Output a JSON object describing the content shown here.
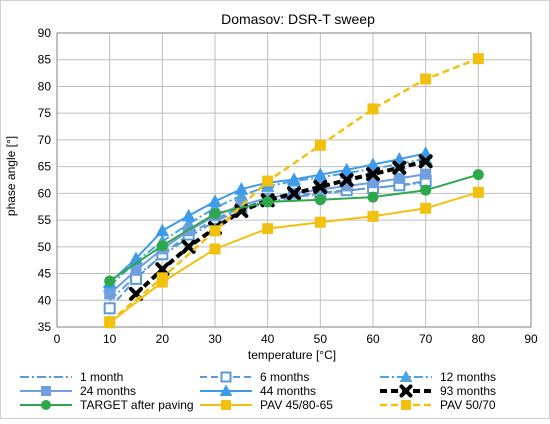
{
  "chart_data": {
    "type": "line",
    "title": "Domasov: DSR-T sweep",
    "xlabel": "temperature [°C]",
    "ylabel": "phase angle    [°]",
    "xlim": [
      0,
      90
    ],
    "ylim": [
      35,
      90
    ],
    "xticks": [
      0,
      10,
      20,
      30,
      40,
      50,
      60,
      70,
      80,
      90
    ],
    "yticks": [
      35,
      40,
      45,
      50,
      55,
      60,
      65,
      70,
      75,
      80,
      85,
      90
    ],
    "grid": true,
    "legend_position": "bottom",
    "series": [
      {
        "name": "1 month",
        "color": "#5b9bd5",
        "line": "dashdot",
        "marker": "none",
        "width": 2,
        "x": [
          10,
          15,
          20,
          25,
          30,
          35,
          40,
          45,
          50,
          55,
          60,
          65,
          70
        ],
        "y": [
          40.0,
          44.5,
          48.3,
          51.8,
          54.8,
          56.9,
          58.3,
          59.3,
          59.9,
          60.5,
          61.0,
          61.5,
          62.0
        ]
      },
      {
        "name": "6 months",
        "color": "#5b9bd5",
        "line": "dash",
        "marker": "square-open",
        "width": 2,
        "x": [
          10,
          15,
          20,
          25,
          30,
          35,
          40,
          45,
          50,
          55,
          60,
          65,
          70
        ],
        "y": [
          38.5,
          44.0,
          48.6,
          52.3,
          55.2,
          57.3,
          58.7,
          59.6,
          60.1,
          60.6,
          61.0,
          61.5,
          62.3
        ]
      },
      {
        "name": "12 months",
        "color": "#4fa3e0",
        "line": "dashdot",
        "marker": "triangle",
        "width": 2,
        "x": [
          10,
          15,
          20,
          25,
          30,
          35,
          40,
          45,
          50,
          55,
          60,
          65,
          70
        ],
        "y": [
          42.6,
          47.3,
          51.0,
          54.3,
          57.3,
          59.6,
          61.3,
          62.3,
          63.0,
          63.8,
          64.6,
          65.5,
          66.5
        ]
      },
      {
        "name": "24 months",
        "color": "#6f9fe0",
        "line": "solid",
        "marker": "square",
        "width": 2,
        "x": [
          10,
          15,
          20,
          25,
          30,
          35,
          40,
          45,
          50,
          55,
          60,
          65,
          70
        ],
        "y": [
          41.2,
          45.6,
          49.6,
          53.0,
          55.8,
          57.8,
          59.1,
          60.0,
          60.7,
          61.4,
          62.0,
          62.8,
          63.6
        ]
      },
      {
        "name": "44 months",
        "color": "#3d9be9",
        "line": "solid",
        "marker": "triangle",
        "width": 2,
        "x": [
          10,
          15,
          20,
          25,
          30,
          35,
          40,
          45,
          50,
          55,
          60,
          65,
          70
        ],
        "y": [
          43.3,
          47.8,
          53.0,
          55.8,
          58.5,
          60.8,
          62.0,
          62.6,
          63.5,
          64.4,
          65.4,
          66.4,
          67.5
        ]
      },
      {
        "name": "93 months",
        "color": "#000000",
        "line": "dash",
        "marker": "x-bold",
        "width": 4,
        "x": [
          15,
          20,
          25,
          30,
          35,
          40,
          45,
          50,
          55,
          60,
          65,
          70
        ],
        "y": [
          41.2,
          45.8,
          50.0,
          53.5,
          56.7,
          58.7,
          60.0,
          61.2,
          62.5,
          63.6,
          64.8,
          66.0
        ]
      },
      {
        "name": "TARGET after paving",
        "color": "#2ea84a",
        "line": "solid",
        "marker": "circle",
        "width": 2,
        "x": [
          10,
          20,
          30,
          40,
          50,
          60,
          70,
          80
        ],
        "y": [
          43.6,
          50.2,
          56.2,
          58.4,
          58.8,
          59.3,
          60.6,
          63.5
        ]
      },
      {
        "name": "PAV 45/80-65",
        "color": "#f2c10f",
        "line": "solid",
        "marker": "square",
        "width": 2,
        "x": [
          10,
          20,
          30,
          40,
          50,
          60,
          70,
          80
        ],
        "y": [
          35.8,
          43.4,
          49.6,
          53.4,
          54.6,
          55.7,
          57.2,
          60.2
        ]
      },
      {
        "name": "PAV 50/70",
        "color": "#f2c10f",
        "line": "dash",
        "marker": "square",
        "width": 2.5,
        "x": [
          10,
          20,
          30,
          40,
          50,
          60,
          70,
          80
        ],
        "y": [
          36.0,
          44.2,
          53.0,
          62.3,
          69.0,
          75.8,
          81.4,
          85.2
        ]
      }
    ]
  }
}
